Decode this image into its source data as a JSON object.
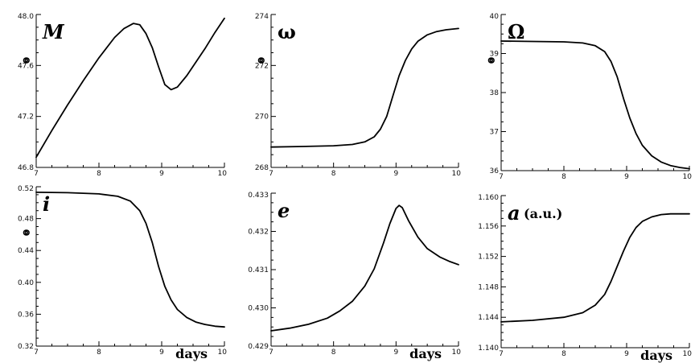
{
  "chart_data": [
    {
      "type": "line",
      "title": "M",
      "title_italic": true,
      "unit_symbol": "o",
      "xlabel": "",
      "xlim": [
        7,
        10
      ],
      "ylim": [
        46.8,
        48.0
      ],
      "xticks": [
        "7",
        "8",
        "9",
        "10"
      ],
      "yticks": [
        "46.8",
        "47.2",
        "47.6",
        "48.0"
      ],
      "x": [
        7.0,
        7.25,
        7.5,
        7.75,
        8.0,
        8.25,
        8.4,
        8.55,
        8.65,
        8.75,
        8.85,
        8.95,
        9.05,
        9.15,
        9.25,
        9.4,
        9.55,
        9.7,
        9.85,
        10.0
      ],
      "y": [
        46.88,
        47.09,
        47.29,
        47.48,
        47.66,
        47.82,
        47.89,
        47.93,
        47.92,
        47.85,
        47.74,
        47.59,
        47.45,
        47.41,
        47.43,
        47.52,
        47.63,
        47.74,
        47.86,
        47.97
      ]
    },
    {
      "type": "line",
      "title": "ω",
      "title_italic": false,
      "unit_symbol": "o",
      "xlabel": "",
      "xlim": [
        7,
        10
      ],
      "ylim": [
        268,
        274
      ],
      "xticks": [
        "7",
        "8",
        "9",
        "10"
      ],
      "yticks": [
        "268",
        "270",
        "272",
        "274"
      ],
      "x": [
        7.0,
        7.5,
        8.0,
        8.3,
        8.5,
        8.65,
        8.75,
        8.85,
        8.95,
        9.05,
        9.15,
        9.25,
        9.35,
        9.5,
        9.65,
        9.8,
        10.0
      ],
      "y": [
        268.8,
        268.82,
        268.85,
        268.9,
        269.0,
        269.2,
        269.5,
        270.0,
        270.8,
        271.6,
        272.2,
        272.65,
        272.95,
        273.2,
        273.33,
        273.4,
        273.45
      ]
    },
    {
      "type": "line",
      "title": "Ω",
      "title_italic": false,
      "unit_symbol": "o",
      "xlabel": "",
      "xlim": [
        7,
        10
      ],
      "ylim": [
        36,
        40
      ],
      "xticks": [
        "7",
        "8",
        "9",
        "10"
      ],
      "yticks": [
        "36",
        "37",
        "38",
        "39",
        "40"
      ],
      "x": [
        7.0,
        7.5,
        8.0,
        8.3,
        8.5,
        8.65,
        8.75,
        8.85,
        8.95,
        9.05,
        9.15,
        9.25,
        9.4,
        9.55,
        9.7,
        9.85,
        10.0
      ],
      "y": [
        39.32,
        39.31,
        39.3,
        39.27,
        39.2,
        39.05,
        38.8,
        38.4,
        37.85,
        37.35,
        36.95,
        36.65,
        36.38,
        36.22,
        36.13,
        36.08,
        36.05
      ]
    },
    {
      "type": "line",
      "title": "i",
      "title_italic": true,
      "unit_symbol": "o",
      "xlabel": "days",
      "xlim": [
        7,
        10
      ],
      "ylim": [
        0.32,
        0.52
      ],
      "xticks": [
        "7",
        "8",
        "9",
        "10"
      ],
      "yticks": [
        "0.32",
        "0.36",
        "0.40",
        "0.44",
        "0.48",
        "0.52"
      ],
      "x": [
        7.0,
        7.5,
        8.0,
        8.3,
        8.5,
        8.65,
        8.75,
        8.85,
        8.95,
        9.05,
        9.15,
        9.25,
        9.4,
        9.55,
        9.7,
        9.85,
        10.0
      ],
      "y": [
        0.513,
        0.5125,
        0.511,
        0.508,
        0.502,
        0.49,
        0.474,
        0.45,
        0.42,
        0.395,
        0.378,
        0.366,
        0.356,
        0.35,
        0.347,
        0.345,
        0.344
      ]
    },
    {
      "type": "line",
      "title": "e",
      "title_italic": true,
      "unit_symbol": "",
      "xlabel": "days",
      "xlim": [
        7,
        10
      ],
      "ylim": [
        0.429,
        0.433
      ],
      "xticks": [
        "7",
        "8",
        "9",
        "10"
      ],
      "yticks": [
        "0.429",
        "0.430",
        "0.431",
        "0.432",
        "0.433"
      ],
      "x": [
        7.0,
        7.3,
        7.6,
        7.9,
        8.1,
        8.3,
        8.5,
        8.65,
        8.8,
        8.9,
        9.0,
        9.05,
        9.1,
        9.2,
        9.35,
        9.5,
        9.7,
        9.85,
        10.0
      ],
      "y": [
        0.4294,
        0.42947,
        0.42957,
        0.42973,
        0.42992,
        0.43017,
        0.43057,
        0.43102,
        0.4317,
        0.4322,
        0.4326,
        0.43268,
        0.43262,
        0.43228,
        0.43185,
        0.43155,
        0.43133,
        0.43122,
        0.43113
      ]
    },
    {
      "type": "line",
      "title": "a",
      "title_italic": true,
      "title_suffix": "(a.u.)",
      "unit_symbol": "",
      "xlabel": "days",
      "xlim": [
        7,
        10
      ],
      "ylim": [
        1.14,
        1.16
      ],
      "xticks": [
        "7",
        "8",
        "9",
        "10"
      ],
      "yticks": [
        "1.140",
        "1.144",
        "1.148",
        "1.152",
        "1.156",
        "1.160"
      ],
      "x": [
        7.0,
        7.5,
        8.0,
        8.3,
        8.5,
        8.65,
        8.75,
        8.85,
        8.95,
        9.05,
        9.15,
        9.25,
        9.4,
        9.55,
        9.7,
        9.85,
        10.0
      ],
      "y": [
        1.1434,
        1.1436,
        1.144,
        1.1446,
        1.1456,
        1.147,
        1.1487,
        1.1507,
        1.1527,
        1.1545,
        1.1558,
        1.1566,
        1.1572,
        1.1575,
        1.1576,
        1.1576,
        1.1576
      ]
    }
  ]
}
